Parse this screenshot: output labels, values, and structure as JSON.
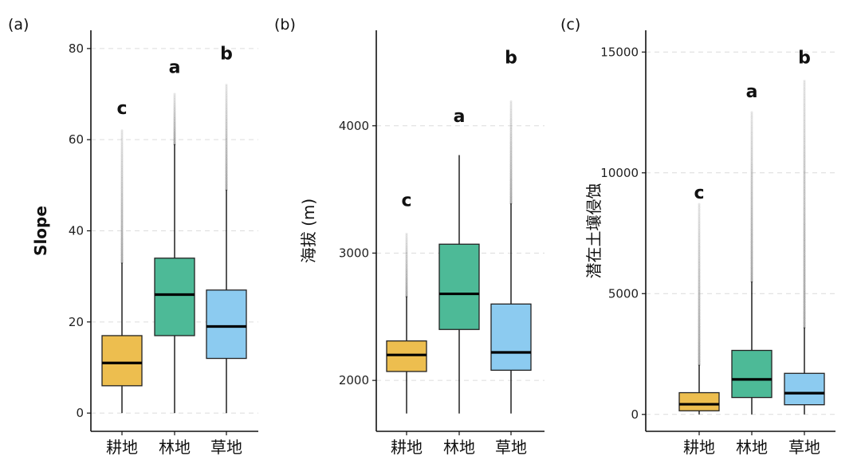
{
  "chart_data": [
    {
      "type": "boxplot",
      "panel_label": "(a)",
      "ylabel": "Slope",
      "ylim": [
        -4,
        84
      ],
      "yticks": [
        0,
        20,
        40,
        60,
        80
      ],
      "ytick_labels": [
        "0",
        "20",
        "40",
        "60",
        "80"
      ],
      "categories": [
        "耕地",
        "林地",
        "草地"
      ],
      "colors": [
        "#EDBE4F",
        "#4DBA97",
        "#8CCBF0"
      ],
      "boxes": [
        {
          "min": 0,
          "q1": 6,
          "median": 11,
          "q3": 17,
          "max": 33,
          "outliers_to": 62
        },
        {
          "min": 0,
          "q1": 17,
          "median": 26,
          "q3": 34,
          "max": 59,
          "outliers_to": 70
        },
        {
          "min": 0,
          "q1": 12,
          "median": 19,
          "q3": 27,
          "max": 49,
          "outliers_to": 72
        }
      ],
      "letters": [
        {
          "text": "c",
          "y": 67
        },
        {
          "text": "a",
          "y": 76
        },
        {
          "text": "b",
          "y": 79
        }
      ]
    },
    {
      "type": "boxplot",
      "panel_label": "(b)",
      "ylabel": "海拔 (m)",
      "ylim": [
        1600,
        4750
      ],
      "yticks": [
        2000,
        3000,
        4000
      ],
      "ytick_labels": [
        "2000",
        "3000",
        "4000"
      ],
      "categories": [
        "耕地",
        "林地",
        "草地"
      ],
      "colors": [
        "#EDBE4F",
        "#4DBA97",
        "#8CCBF0"
      ],
      "boxes": [
        {
          "min": 1740,
          "q1": 2070,
          "median": 2200,
          "q3": 2310,
          "max": 2660,
          "outliers_to": 3150
        },
        {
          "min": 1740,
          "q1": 2400,
          "median": 2680,
          "q3": 3070,
          "max": 3770,
          "outliers_to": 3770
        },
        {
          "min": 1740,
          "q1": 2080,
          "median": 2220,
          "q3": 2600,
          "max": 3390,
          "outliers_to": 4190
        }
      ],
      "letters": [
        {
          "text": "c",
          "y": 3420
        },
        {
          "text": "a",
          "y": 4080
        },
        {
          "text": "b",
          "y": 4540
        }
      ]
    },
    {
      "type": "boxplot",
      "panel_label": "(c)",
      "ylabel": "潜在土壤侵蚀",
      "ylim": [
        -700,
        15900
      ],
      "yticks": [
        0,
        5000,
        10000,
        15000
      ],
      "ytick_labels": [
        "0",
        "5000",
        "10000",
        "15000"
      ],
      "categories": [
        "耕地",
        "林地",
        "草地"
      ],
      "colors": [
        "#EDBE4F",
        "#4DBA97",
        "#8CCBF0"
      ],
      "boxes": [
        {
          "min": 0,
          "q1": 150,
          "median": 420,
          "q3": 900,
          "max": 2050,
          "outliers_to": 8700
        },
        {
          "min": 0,
          "q1": 700,
          "median": 1450,
          "q3": 2650,
          "max": 5500,
          "outliers_to": 12500
        },
        {
          "min": 0,
          "q1": 400,
          "median": 880,
          "q3": 1700,
          "max": 3600,
          "outliers_to": 13800
        }
      ],
      "letters": [
        {
          "text": "c",
          "y": 9200
        },
        {
          "text": "a",
          "y": 13400
        },
        {
          "text": "b",
          "y": 14800
        }
      ]
    }
  ]
}
